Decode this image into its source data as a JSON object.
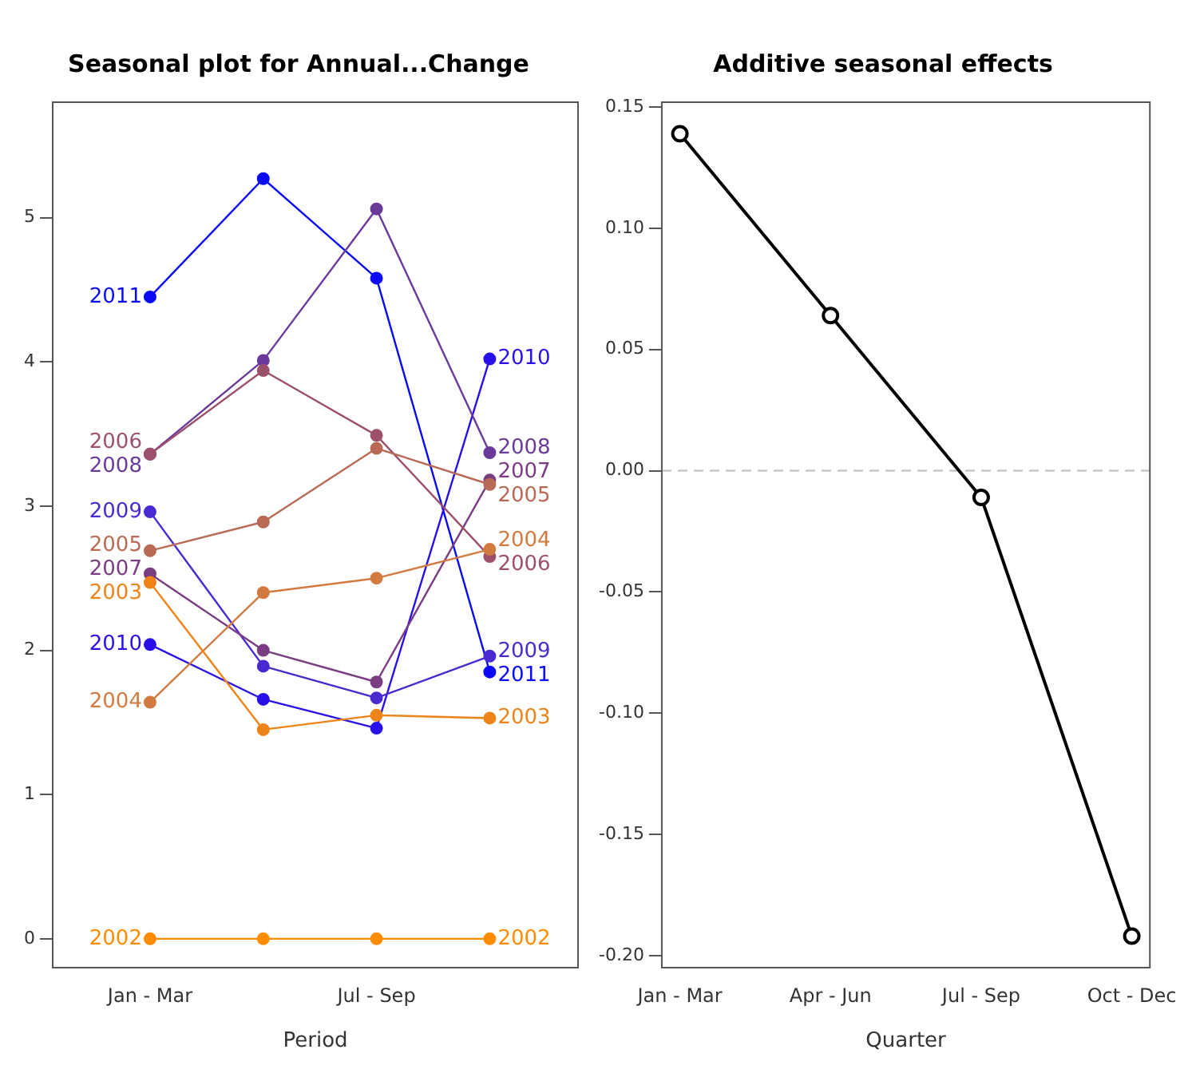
{
  "chart_data": [
    {
      "type": "line",
      "title": "Seasonal plot for Annual...Change",
      "xlabel": "Period",
      "categories": [
        "Jan - Mar",
        null,
        "Jul - Sep",
        null
      ],
      "ylim": [
        -0.2,
        5.8
      ],
      "yticks": [
        0,
        1,
        2,
        3,
        4,
        5
      ],
      "grid": false,
      "marker": "circle",
      "series": [
        {
          "name": "2002",
          "color": "#ff8c00",
          "values": [
            0,
            0,
            0,
            0
          ]
        },
        {
          "name": "2003",
          "color": "#ee8418",
          "values": [
            2.47,
            1.45,
            1.55,
            1.53
          ]
        },
        {
          "name": "2004",
          "color": "#d27a40",
          "values": [
            1.64,
            2.4,
            2.5,
            2.7
          ]
        },
        {
          "name": "2005",
          "color": "#b86a55",
          "values": [
            2.69,
            2.89,
            3.4,
            3.15
          ]
        },
        {
          "name": "2006",
          "color": "#9c506c",
          "values": [
            3.36,
            3.94,
            3.49,
            2.65
          ]
        },
        {
          "name": "2007",
          "color": "#7a3c82",
          "values": [
            2.53,
            2.0,
            1.78,
            3.18
          ]
        },
        {
          "name": "2008",
          "color": "#6a3a9a",
          "values": [
            3.36,
            4.01,
            5.06,
            3.37
          ]
        },
        {
          "name": "2009",
          "color": "#4a2ad0",
          "values": [
            2.96,
            1.89,
            1.67,
            1.96
          ]
        },
        {
          "name": "2010",
          "color": "#2a10e8",
          "values": [
            2.04,
            1.66,
            1.46,
            4.02
          ]
        },
        {
          "name": "2011",
          "color": "#0a0af5",
          "values": [
            4.45,
            5.27,
            4.58,
            1.85
          ]
        }
      ]
    },
    {
      "type": "line",
      "title": "Additive seasonal effects",
      "xlabel": "Quarter",
      "categories": [
        "Jan - Mar",
        "Apr - Jun",
        "Jul - Sep",
        "Oct - Dec"
      ],
      "values": [
        0.139,
        0.064,
        -0.011,
        -0.192
      ],
      "color": "#000000",
      "marker": "circle",
      "grid": false,
      "ylim": [
        -0.205,
        0.152
      ],
      "yticks": [
        {
          "value": 0.15,
          "label": "0.15"
        },
        {
          "value": 0.1,
          "label": "0.10"
        },
        {
          "value": 0.05,
          "label": "0.05"
        },
        {
          "value": 0,
          "label": "0.00"
        },
        {
          "value": -0.05,
          "label": "-0.05"
        },
        {
          "value": -0.1,
          "label": "-0.10"
        },
        {
          "value": -0.15,
          "label": "-0.15"
        },
        {
          "value": -0.2,
          "label": "-0.20"
        }
      ],
      "ref_lines": [
        {
          "axis": "y",
          "value": 0,
          "color": "#bbbbbb",
          "line_style": "dashed"
        }
      ]
    }
  ]
}
